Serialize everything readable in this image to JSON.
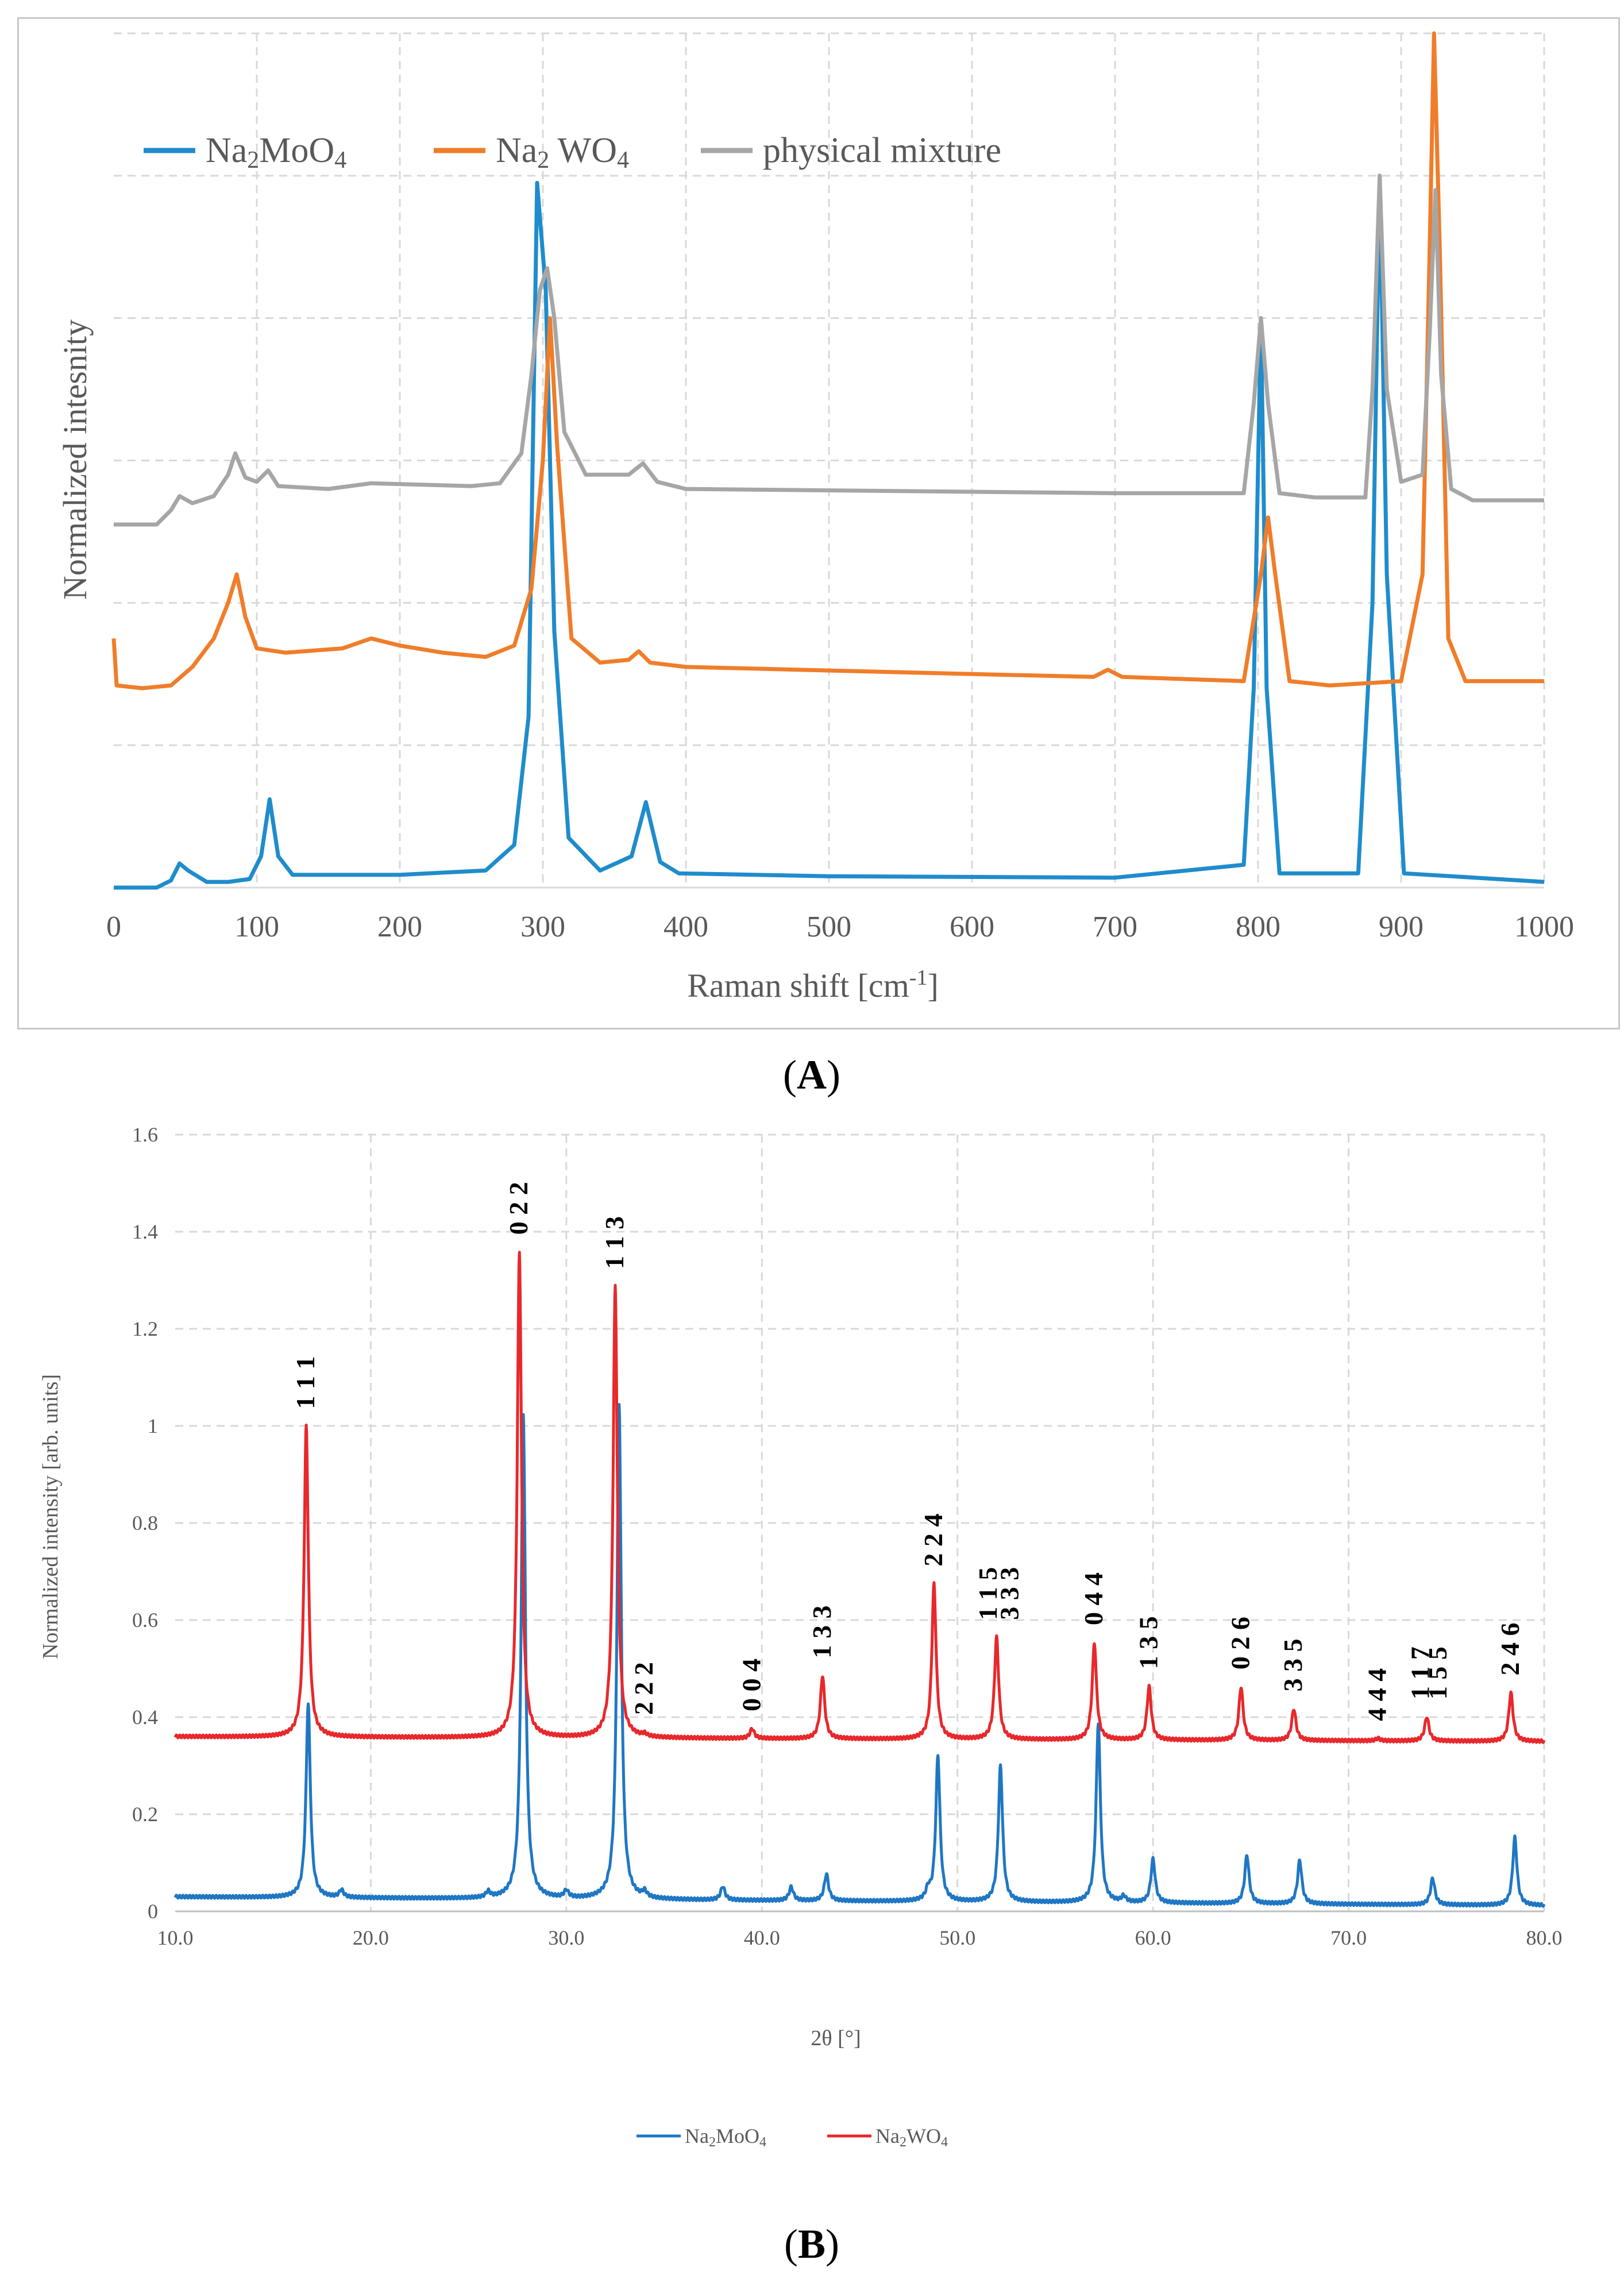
{
  "panels": {
    "a": {
      "label": "A"
    },
    "b": {
      "label": "B"
    }
  },
  "chart_data": [
    {
      "type": "line",
      "panel": "A",
      "title": "",
      "xlabel": "Raman shift [cm-1]",
      "xlabel_parts": {
        "main": "Raman shift  [cm",
        "sup": "-1",
        "tail": "]"
      },
      "ylabel": "Normalized intesnity",
      "xlim": [
        0,
        1000
      ],
      "ylim": [
        0,
        6
      ],
      "x_ticks": [
        "0",
        "100",
        "200",
        "300",
        "400",
        "500",
        "600",
        "700",
        "800",
        "900",
        "1000"
      ],
      "grid": true,
      "legend_position": "top-left",
      "series": [
        {
          "name": "Na2MoO4",
          "legend_parts": {
            "a": "Na",
            "a_sub": "2",
            "b": "MoO",
            "b_sub": "4"
          },
          "color": "#1f8ccc",
          "baseline": 0.06,
          "points": [
            [
              0,
              0.0
            ],
            [
              30,
              0.0
            ],
            [
              40,
              0.05
            ],
            [
              46,
              0.17
            ],
            [
              52,
              0.12
            ],
            [
              65,
              0.04
            ],
            [
              80,
              0.04
            ],
            [
              95,
              0.06
            ],
            [
              103,
              0.22
            ],
            [
              109,
              0.62
            ],
            [
              115,
              0.22
            ],
            [
              125,
              0.09
            ],
            [
              200,
              0.09
            ],
            [
              260,
              0.12
            ],
            [
              280,
              0.3
            ],
            [
              290,
              1.2
            ],
            [
              296,
              4.95
            ],
            [
              302,
              4.2
            ],
            [
              308,
              1.8
            ],
            [
              318,
              0.35
            ],
            [
              340,
              0.12
            ],
            [
              362,
              0.22
            ],
            [
              372,
              0.6
            ],
            [
              382,
              0.18
            ],
            [
              395,
              0.1
            ],
            [
              500,
              0.08
            ],
            [
              700,
              0.07
            ],
            [
              790,
              0.16
            ],
            [
              797,
              1.4
            ],
            [
              802,
              4.0
            ],
            [
              806,
              1.4
            ],
            [
              815,
              0.1
            ],
            [
              870,
              0.1
            ],
            [
              880,
              2.0
            ],
            [
              885,
              5.0
            ],
            [
              890,
              2.2
            ],
            [
              902,
              0.1
            ],
            [
              1000,
              0.04
            ]
          ]
        },
        {
          "name": "Na2WO4",
          "legend_parts": {
            "a": "Na",
            "a_sub": "2",
            "b": " WO",
            "b_sub": "4"
          },
          "color": "#f07d2a",
          "baseline": 1.42,
          "points": [
            [
              0,
              1.75
            ],
            [
              2,
              1.42
            ],
            [
              20,
              1.4
            ],
            [
              40,
              1.42
            ],
            [
              55,
              1.55
            ],
            [
              70,
              1.75
            ],
            [
              80,
              2.0
            ],
            [
              86,
              2.2
            ],
            [
              92,
              1.9
            ],
            [
              100,
              1.68
            ],
            [
              120,
              1.65
            ],
            [
              160,
              1.68
            ],
            [
              180,
              1.75
            ],
            [
              200,
              1.7
            ],
            [
              230,
              1.65
            ],
            [
              260,
              1.62
            ],
            [
              280,
              1.7
            ],
            [
              292,
              2.1
            ],
            [
              300,
              3.0
            ],
            [
              305,
              4.0
            ],
            [
              310,
              3.1
            ],
            [
              320,
              1.75
            ],
            [
              340,
              1.58
            ],
            [
              360,
              1.6
            ],
            [
              367,
              1.66
            ],
            [
              375,
              1.58
            ],
            [
              400,
              1.55
            ],
            [
              600,
              1.5
            ],
            [
              685,
              1.48
            ],
            [
              695,
              1.53
            ],
            [
              705,
              1.48
            ],
            [
              790,
              1.45
            ],
            [
              802,
              2.2
            ],
            [
              807,
              2.6
            ],
            [
              812,
              2.2
            ],
            [
              822,
              1.45
            ],
            [
              850,
              1.42
            ],
            [
              900,
              1.45
            ],
            [
              915,
              2.2
            ],
            [
              920,
              4.5
            ],
            [
              923,
              6.0
            ],
            [
              927,
              4.5
            ],
            [
              933,
              1.75
            ],
            [
              945,
              1.45
            ],
            [
              1000,
              1.45
            ]
          ]
        },
        {
          "name": "physical mixture",
          "color": "#a6a6a6",
          "baseline": 2.53,
          "points": [
            [
              0,
              2.55
            ],
            [
              30,
              2.55
            ],
            [
              40,
              2.65
            ],
            [
              46,
              2.75
            ],
            [
              55,
              2.7
            ],
            [
              70,
              2.75
            ],
            [
              80,
              2.9
            ],
            [
              85,
              3.05
            ],
            [
              92,
              2.88
            ],
            [
              100,
              2.85
            ],
            [
              108,
              2.93
            ],
            [
              115,
              2.82
            ],
            [
              150,
              2.8
            ],
            [
              180,
              2.84
            ],
            [
              250,
              2.82
            ],
            [
              270,
              2.84
            ],
            [
              285,
              3.05
            ],
            [
              292,
              3.6
            ],
            [
              298,
              4.2
            ],
            [
              303,
              4.35
            ],
            [
              308,
              4.0
            ],
            [
              315,
              3.2
            ],
            [
              330,
              2.9
            ],
            [
              360,
              2.9
            ],
            [
              370,
              2.98
            ],
            [
              380,
              2.85
            ],
            [
              400,
              2.8
            ],
            [
              700,
              2.77
            ],
            [
              790,
              2.77
            ],
            [
              797,
              3.4
            ],
            [
              802,
              4.0
            ],
            [
              807,
              3.4
            ],
            [
              815,
              2.77
            ],
            [
              840,
              2.74
            ],
            [
              875,
              2.74
            ],
            [
              880,
              3.5
            ],
            [
              885,
              5.0
            ],
            [
              890,
              3.5
            ],
            [
              900,
              2.85
            ],
            [
              915,
              2.9
            ],
            [
              920,
              3.9
            ],
            [
              924,
              4.9
            ],
            [
              928,
              3.6
            ],
            [
              935,
              2.8
            ],
            [
              950,
              2.72
            ],
            [
              1000,
              2.72
            ]
          ]
        }
      ]
    },
    {
      "type": "line",
      "panel": "B",
      "title": "",
      "xlabel": "2θ [°]",
      "ylabel": "Normalized intensity [arb. units]",
      "xlim": [
        10,
        80
      ],
      "ylim": [
        0,
        1.6
      ],
      "x_ticks": [
        "10.0",
        "20.0",
        "30.0",
        "40.0",
        "50.0",
        "60.0",
        "70.0",
        "80.0"
      ],
      "y_ticks": [
        "0",
        "0.2",
        "0.4",
        "0.6",
        "0.8",
        "1",
        "1.2",
        "1.4",
        "1.6"
      ],
      "grid": true,
      "legend_position": "bottom-center",
      "series": [
        {
          "name": "Na2MoO4",
          "legend_parts": {
            "a": "Na",
            "a_sub": "2",
            "b": "MoO",
            "b_sub": "4"
          },
          "color": "#1f77c4",
          "baseline": {
            "start": 0.03,
            "end": 0.012
          },
          "peaks": [
            [
              16.8,
              0.4
            ],
            [
              18.5,
              0.015
            ],
            [
              26.0,
              0.012
            ],
            [
              27.8,
              1.0
            ],
            [
              30.0,
              0.015
            ],
            [
              32.7,
              1.02
            ],
            [
              34.0,
              0.012
            ],
            [
              38.0,
              0.028
            ],
            [
              41.5,
              0.028
            ],
            [
              43.3,
              0.055
            ],
            [
              48.5,
              0.02
            ],
            [
              49.0,
              0.3
            ],
            [
              52.2,
              0.28
            ],
            [
              57.2,
              0.37
            ],
            [
              58.5,
              0.012
            ],
            [
              60.0,
              0.09
            ],
            [
              64.8,
              0.1
            ],
            [
              67.5,
              0.09
            ],
            [
              74.3,
              0.055
            ],
            [
              78.5,
              0.14
            ]
          ]
        },
        {
          "name": "Na2WO4",
          "legend_parts": {
            "a": "Na",
            "a_sub": "2",
            "b": "WO",
            "b_sub": "4"
          },
          "color": "#e8282b",
          "baseline": {
            "start": 0.36,
            "end": 0.35
          },
          "peaks": [
            [
              16.7,
              0.64
            ],
            [
              27.6,
              1.0
            ],
            [
              32.5,
              0.93
            ],
            [
              34.0,
              0.005
            ],
            [
              39.5,
              0.02
            ],
            [
              43.1,
              0.13
            ],
            [
              48.8,
              0.32
            ],
            [
              52.0,
              0.21
            ],
            [
              57.0,
              0.2
            ],
            [
              59.8,
              0.11
            ],
            [
              64.5,
              0.11
            ],
            [
              67.2,
              0.065
            ],
            [
              71.5,
              0.005
            ],
            [
              74.0,
              0.05
            ],
            [
              78.3,
              0.1
            ]
          ]
        }
      ],
      "annotations": [
        {
          "text": "1 1 1",
          "x": 16.7
        },
        {
          "text": "0 2 2",
          "x": 27.6
        },
        {
          "text": "1 1 3",
          "x": 32.5
        },
        {
          "text": "2 2 2",
          "x": 34.0
        },
        {
          "text": "0 0 4",
          "x": 39.5
        },
        {
          "text": "1 3 3",
          "x": 43.1
        },
        {
          "text": "2 2 4",
          "x": 48.8
        },
        {
          "text": "1 1 5",
          "x": 51.6
        },
        {
          "text": "3 3 3",
          "x": 52.7
        },
        {
          "text": "0 4 4",
          "x": 57.0
        },
        {
          "text": "1 3 5",
          "x": 59.8
        },
        {
          "text": "0 2 6",
          "x": 64.5
        },
        {
          "text": "3 3 5",
          "x": 67.2
        },
        {
          "text": "4 4 4",
          "x": 71.5
        },
        {
          "text": "1 1 7",
          "x": 73.7
        },
        {
          "text": "1 5 5",
          "x": 74.6
        },
        {
          "text": "2 4 6",
          "x": 78.3
        }
      ]
    }
  ]
}
